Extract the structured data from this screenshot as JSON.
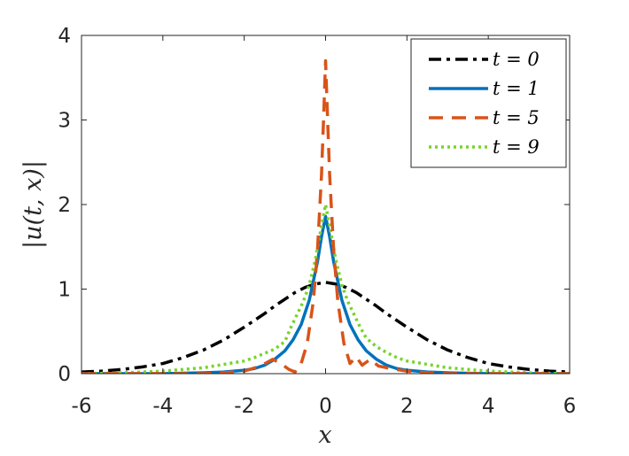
{
  "chart_data": {
    "type": "line",
    "title": "",
    "xlabel": "x",
    "ylabel": "|u(t, x)|",
    "xlim": [
      -6,
      6
    ],
    "ylim": [
      0,
      4
    ],
    "xticks": [
      "-6",
      "-4",
      "-2",
      "0",
      "2",
      "4",
      "6"
    ],
    "yticks": [
      "0",
      "1",
      "2",
      "3",
      "4"
    ],
    "grid": false,
    "legend_position": "top-right",
    "series": [
      {
        "name": "t = 0",
        "color": "#000000",
        "style": "dash-dot",
        "x": [
          -6,
          -5.5,
          -5,
          -4.5,
          -4,
          -3.5,
          -3,
          -2.5,
          -2,
          -1.75,
          -1.5,
          -1.25,
          -1,
          -0.75,
          -0.5,
          -0.25,
          0,
          0.25,
          0.5,
          0.75,
          1,
          1.25,
          1.5,
          1.75,
          2,
          2.5,
          3,
          3.5,
          4,
          4.5,
          5,
          5.5,
          6
        ],
        "y": [
          0.02,
          0.03,
          0.05,
          0.08,
          0.12,
          0.19,
          0.28,
          0.4,
          0.55,
          0.63,
          0.71,
          0.8,
          0.88,
          0.96,
          1.02,
          1.06,
          1.08,
          1.06,
          1.02,
          0.96,
          0.88,
          0.8,
          0.71,
          0.63,
          0.55,
          0.4,
          0.28,
          0.19,
          0.12,
          0.08,
          0.05,
          0.03,
          0.02
        ]
      },
      {
        "name": "t = 1",
        "color": "#0072BD",
        "style": "solid",
        "x": [
          -6,
          -5,
          -4,
          -3,
          -2.5,
          -2,
          -1.75,
          -1.5,
          -1.25,
          -1,
          -0.8,
          -0.6,
          -0.4,
          -0.2,
          -0.1,
          0,
          0.1,
          0.2,
          0.4,
          0.6,
          0.8,
          1,
          1.25,
          1.5,
          1.75,
          2,
          2.5,
          3,
          4,
          5,
          6
        ],
        "y": [
          0.0,
          0.0,
          0.0,
          0.01,
          0.02,
          0.04,
          0.06,
          0.1,
          0.17,
          0.27,
          0.4,
          0.58,
          0.87,
          1.32,
          1.62,
          1.86,
          1.62,
          1.32,
          0.87,
          0.58,
          0.4,
          0.27,
          0.17,
          0.1,
          0.06,
          0.04,
          0.02,
          0.01,
          0.0,
          0.0,
          0.0
        ]
      },
      {
        "name": "t = 5",
        "color": "#D95319",
        "style": "dashed",
        "x": [
          -6,
          -4,
          -3,
          -2.5,
          -2,
          -1.6,
          -1.3,
          -1.1,
          -0.9,
          -0.75,
          -0.6,
          -0.45,
          -0.3,
          -0.2,
          -0.1,
          -0.05,
          0,
          0.05,
          0.1,
          0.2,
          0.3,
          0.45,
          0.6,
          0.75,
          0.9,
          1.1,
          1.3,
          1.6,
          2,
          2.5,
          3,
          4,
          6
        ],
        "y": [
          0.0,
          0.0,
          0.0,
          0.01,
          0.03,
          0.09,
          0.17,
          0.12,
          0.05,
          0.02,
          0.12,
          0.36,
          0.86,
          1.45,
          2.35,
          3.0,
          3.7,
          3.0,
          2.35,
          1.45,
          0.86,
          0.36,
          0.12,
          0.2,
          0.1,
          0.17,
          0.09,
          0.06,
          0.03,
          0.01,
          0.0,
          0.0,
          0.0
        ]
      },
      {
        "name": "t = 9",
        "color": "#77D42A",
        "style": "dotted",
        "x": [
          -6,
          -5,
          -4,
          -3,
          -2.5,
          -2,
          -1.75,
          -1.5,
          -1.25,
          -1,
          -0.85,
          -0.7,
          -0.55,
          -0.4,
          -0.25,
          -0.1,
          0,
          0.1,
          0.25,
          0.4,
          0.55,
          0.7,
          0.85,
          1,
          1.25,
          1.5,
          1.75,
          2,
          2.5,
          3,
          4,
          5,
          6
        ],
        "y": [
          0.0,
          0.01,
          0.03,
          0.07,
          0.11,
          0.15,
          0.19,
          0.24,
          0.29,
          0.38,
          0.55,
          0.7,
          0.85,
          1.05,
          1.35,
          1.75,
          2.0,
          1.75,
          1.35,
          1.05,
          0.85,
          0.7,
          0.55,
          0.42,
          0.32,
          0.25,
          0.19,
          0.15,
          0.11,
          0.07,
          0.03,
          0.01,
          0.0
        ]
      }
    ]
  }
}
